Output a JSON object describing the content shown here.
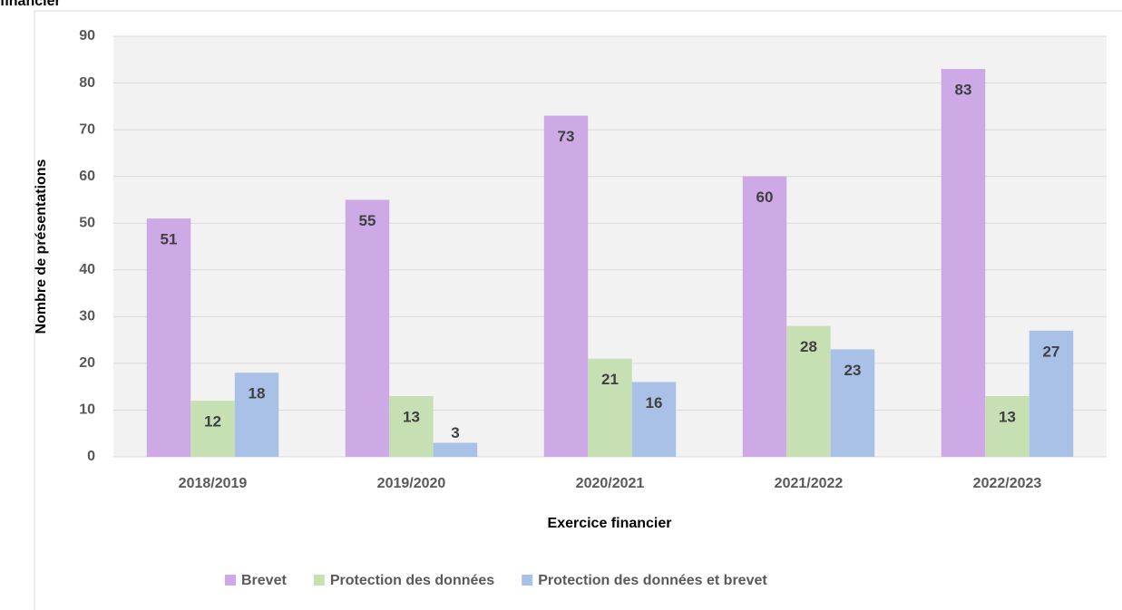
{
  "chart_data": {
    "type": "bar",
    "title": "financier",
    "xlabel": "Exercice financier",
    "ylabel": "Nombre de présentations",
    "categories": [
      "2018/2019",
      "2019/2020",
      "2020/2021",
      "2021/2022",
      "2022/2023"
    ],
    "series": [
      {
        "name": "Brevet",
        "color": "#cdaae6",
        "values": [
          51,
          55,
          73,
          60,
          83
        ]
      },
      {
        "name": "Protection des données",
        "color": "#c6e0b4",
        "values": [
          12,
          13,
          21,
          28,
          13
        ]
      },
      {
        "name": "Protection des données et brevet",
        "color": "#a9c1e7",
        "values": [
          18,
          3,
          16,
          23,
          27
        ]
      }
    ],
    "ylim": [
      0,
      90
    ],
    "yticks": [
      0,
      10,
      20,
      30,
      40,
      50,
      60,
      70,
      80,
      90
    ],
    "grid": true,
    "legend": "bottom"
  }
}
